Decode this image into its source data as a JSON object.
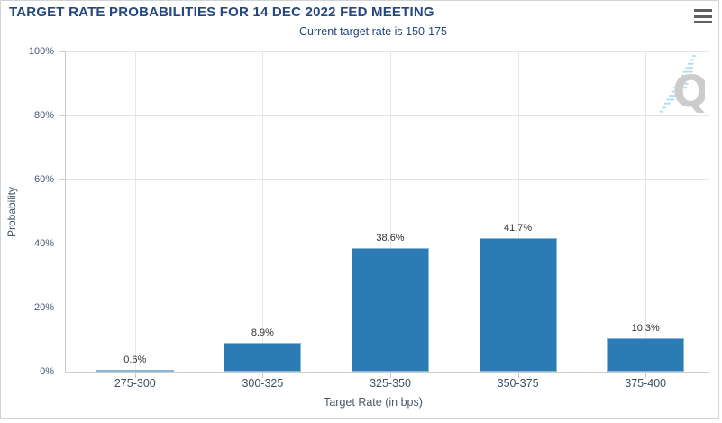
{
  "header": {
    "title": "TARGET RATE PROBABILITIES FOR 14 DEC 2022 FED MEETING",
    "subtitle": "Current target rate is 150-175"
  },
  "menu": {
    "icon": "hamburger-icon"
  },
  "watermark": {
    "letter": "Q"
  },
  "chart_data": {
    "type": "bar",
    "title": "TARGET RATE PROBABILITIES FOR 14 DEC 2022 FED MEETING",
    "subtitle": "Current target rate is 150-175",
    "categories": [
      "275-300",
      "300-325",
      "325-350",
      "350-375",
      "375-400"
    ],
    "values": [
      0.6,
      8.9,
      38.6,
      41.7,
      10.3
    ],
    "data_labels": [
      "0.6%",
      "8.9%",
      "38.6%",
      "41.7%",
      "10.3%"
    ],
    "xlabel": "Target Rate (in bps)",
    "ylabel": "Probability",
    "ylim": [
      0,
      100
    ],
    "yticks": [
      0,
      20,
      40,
      60,
      80,
      100
    ],
    "ytick_labels": [
      "0%",
      "20%",
      "40%",
      "60%",
      "80%",
      "100%"
    ],
    "grid": true,
    "legend": "none",
    "bar_color": "#2b7cb5"
  },
  "colors": {
    "title_navy": "#26477d",
    "bar_blue": "#2b7cb5",
    "gridline": "#e6e6e6",
    "axis_line": "#c9c9c9",
    "axis_label": "#3d5065",
    "data_label": "#333333",
    "watermark_q": "#c7c7c7",
    "watermark_stripes": "#a9dcf2",
    "menu_icon": "#5f5f5f"
  }
}
